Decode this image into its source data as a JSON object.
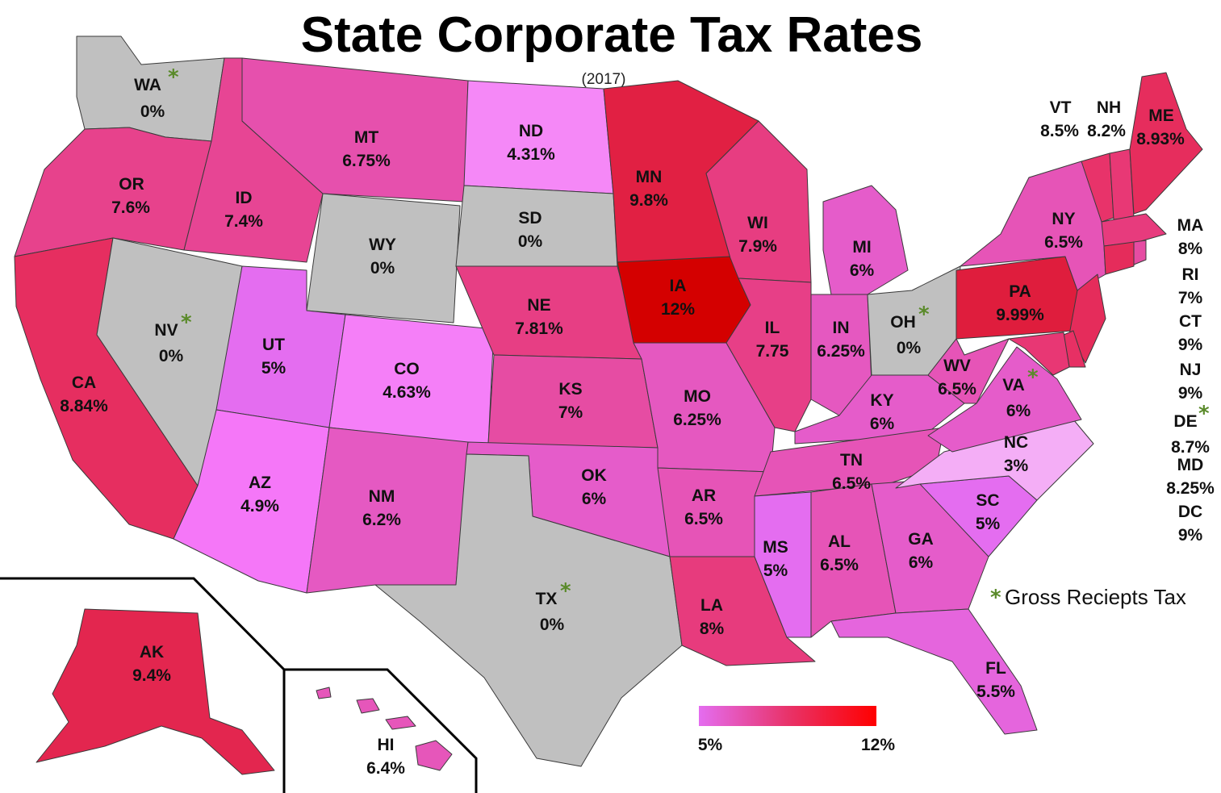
{
  "title": "State Corporate Tax Rates",
  "subtitle": "(2017)",
  "footnote": {
    "marker": "*",
    "text": "Gross Reciepts Tax"
  },
  "legend": {
    "min_label": "5%",
    "max_label": "12%",
    "min": 5,
    "max": 12,
    "color_min": "#e46df0",
    "color_mid": "#e8336a",
    "color_max": "#ff0000",
    "zero_color": "#c0c0c0",
    "low_color": "#f574f8"
  },
  "star_color": "#5a8a2a",
  "states": [
    {
      "abbr": "WA",
      "rate": "0%",
      "value": 0,
      "gross_receipts": true
    },
    {
      "abbr": "OR",
      "rate": "7.6%",
      "value": 7.6
    },
    {
      "abbr": "CA",
      "rate": "8.84%",
      "value": 8.84
    },
    {
      "abbr": "NV",
      "rate": "0%",
      "value": 0,
      "gross_receipts": true
    },
    {
      "abbr": "ID",
      "rate": "7.4%",
      "value": 7.4
    },
    {
      "abbr": "MT",
      "rate": "6.75%",
      "value": 6.75
    },
    {
      "abbr": "WY",
      "rate": "0%",
      "value": 0
    },
    {
      "abbr": "UT",
      "rate": "5%",
      "value": 5
    },
    {
      "abbr": "AZ",
      "rate": "4.9%",
      "value": 4.9
    },
    {
      "abbr": "CO",
      "rate": "4.63%",
      "value": 4.63
    },
    {
      "abbr": "NM",
      "rate": "6.2%",
      "value": 6.2
    },
    {
      "abbr": "ND",
      "rate": "4.31%",
      "value": 4.31
    },
    {
      "abbr": "SD",
      "rate": "0%",
      "value": 0
    },
    {
      "abbr": "NE",
      "rate": "7.81%",
      "value": 7.81
    },
    {
      "abbr": "KS",
      "rate": "7%",
      "value": 7
    },
    {
      "abbr": "OK",
      "rate": "6%",
      "value": 6
    },
    {
      "abbr": "TX",
      "rate": "0%",
      "value": 0,
      "gross_receipts": true
    },
    {
      "abbr": "MN",
      "rate": "9.8%",
      "value": 9.8
    },
    {
      "abbr": "IA",
      "rate": "12%",
      "value": 12
    },
    {
      "abbr": "MO",
      "rate": "6.25%",
      "value": 6.25
    },
    {
      "abbr": "AR",
      "rate": "6.5%",
      "value": 6.5
    },
    {
      "abbr": "LA",
      "rate": "8%",
      "value": 8
    },
    {
      "abbr": "WI",
      "rate": "7.9%",
      "value": 7.9
    },
    {
      "abbr": "IL",
      "rate": "7.75",
      "value": 7.75
    },
    {
      "abbr": "MI",
      "rate": "6%",
      "value": 6
    },
    {
      "abbr": "IN",
      "rate": "6.25%",
      "value": 6.25
    },
    {
      "abbr": "OH",
      "rate": "0%",
      "value": 0,
      "gross_receipts": true
    },
    {
      "abbr": "KY",
      "rate": "6%",
      "value": 6
    },
    {
      "abbr": "TN",
      "rate": "6.5%",
      "value": 6.5
    },
    {
      "abbr": "MS",
      "rate": "5%",
      "value": 5
    },
    {
      "abbr": "AL",
      "rate": "6.5%",
      "value": 6.5
    },
    {
      "abbr": "GA",
      "rate": "6%",
      "value": 6
    },
    {
      "abbr": "FL",
      "rate": "5.5%",
      "value": 5.5
    },
    {
      "abbr": "SC",
      "rate": "5%",
      "value": 5
    },
    {
      "abbr": "NC",
      "rate": "3%",
      "value": 3
    },
    {
      "abbr": "VA",
      "rate": "6%",
      "value": 6,
      "gross_receipts": true
    },
    {
      "abbr": "WV",
      "rate": "6.5%",
      "value": 6.5
    },
    {
      "abbr": "PA",
      "rate": "9.99%",
      "value": 9.99
    },
    {
      "abbr": "NY",
      "rate": "6.5%",
      "value": 6.5
    },
    {
      "abbr": "VT",
      "rate": "8.5%",
      "value": 8.5
    },
    {
      "abbr": "NH",
      "rate": "8.2%",
      "value": 8.2
    },
    {
      "abbr": "ME",
      "rate": "8.93%",
      "value": 8.93
    },
    {
      "abbr": "MA",
      "rate": "8%",
      "value": 8
    },
    {
      "abbr": "RI",
      "rate": "7%",
      "value": 7
    },
    {
      "abbr": "CT",
      "rate": "9%",
      "value": 9
    },
    {
      "abbr": "NJ",
      "rate": "9%",
      "value": 9
    },
    {
      "abbr": "DE",
      "rate": "8.7%",
      "value": 8.7,
      "gross_receipts": true
    },
    {
      "abbr": "MD",
      "rate": "8.25%",
      "value": 8.25
    },
    {
      "abbr": "DC",
      "rate": "9%",
      "value": 9
    },
    {
      "abbr": "AK",
      "rate": "9.4%",
      "value": 9.4
    },
    {
      "abbr": "HI",
      "rate": "6.4%",
      "value": 6.4
    }
  ]
}
